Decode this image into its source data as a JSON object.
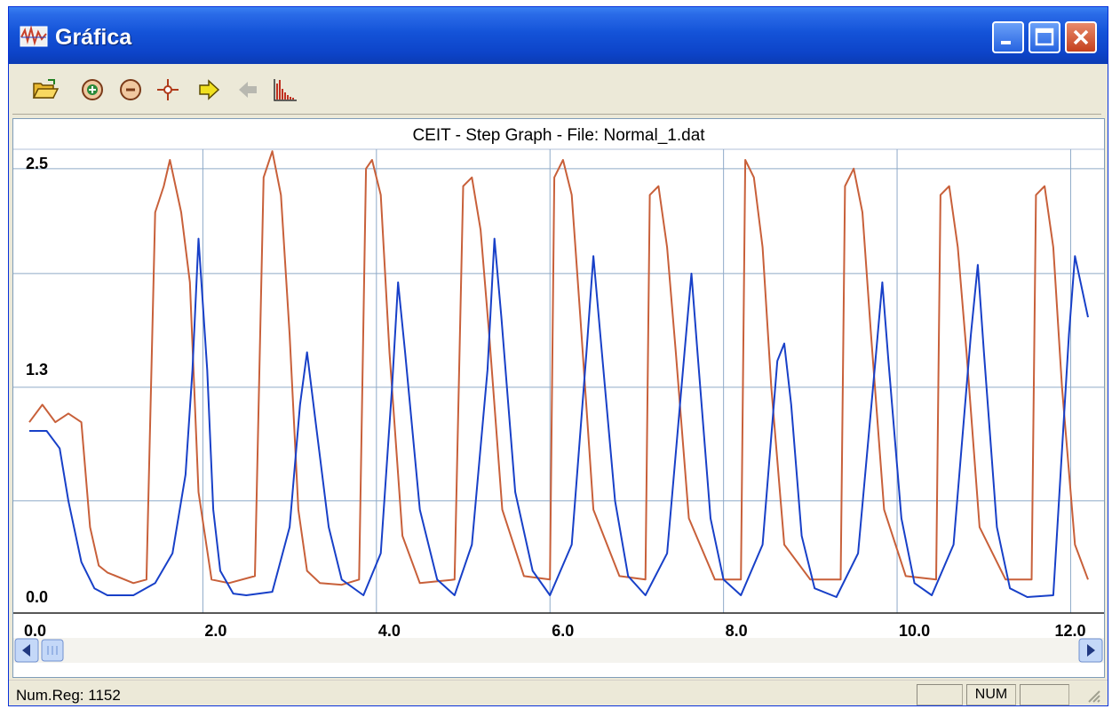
{
  "window": {
    "title": "Gráfica",
    "buttons": {
      "minimize": "minimize-icon",
      "maximize": "maximize-icon",
      "close": "close-icon"
    }
  },
  "toolbar": {
    "icons": [
      "open-folder-icon",
      "zoom-in-icon",
      "zoom-out-icon",
      "crosshair-icon",
      "forward-arrow-icon",
      "back-arrow-icon",
      "histogram-icon"
    ]
  },
  "status": {
    "text": "Num.Reg: 1152",
    "num": "NUM"
  },
  "colors": {
    "series_orange": "#c8603a",
    "series_blue": "#1840c8",
    "grid": "#8faac8"
  },
  "chart_data": {
    "type": "line",
    "title": "CEIT - Step Graph - File: Normal_1.dat",
    "x_ticks": [
      "0.0",
      "2.0",
      "4.0",
      "6.0",
      "8.0",
      "10.0",
      "12.0"
    ],
    "y_ticks": [
      "0.0",
      "1.3",
      "2.5"
    ],
    "xlim": [
      0.0,
      12.2
    ],
    "ylim": [
      0.0,
      2.5
    ],
    "grid": true,
    "series": [
      {
        "color": "#c8603a",
        "x": [
          0.0,
          0.15,
          0.3,
          0.45,
          0.6,
          0.7,
          0.8,
          0.9,
          1.2,
          1.35,
          1.45,
          1.55,
          1.62,
          1.75,
          1.85,
          1.95,
          2.1,
          2.3,
          2.6,
          2.7,
          2.8,
          2.9,
          3.0,
          3.1,
          3.2,
          3.35,
          3.6,
          3.8,
          3.88,
          3.95,
          4.05,
          4.15,
          4.3,
          4.5,
          4.9,
          5.0,
          5.1,
          5.2,
          5.3,
          5.45,
          5.7,
          6.0,
          6.05,
          6.15,
          6.25,
          6.35,
          6.5,
          6.8,
          7.1,
          7.15,
          7.25,
          7.35,
          7.45,
          7.6,
          7.9,
          8.2,
          8.25,
          8.35,
          8.45,
          8.55,
          8.7,
          9.0,
          9.35,
          9.4,
          9.5,
          9.6,
          9.7,
          9.85,
          10.1,
          10.45,
          10.5,
          10.6,
          10.7,
          10.8,
          10.95,
          11.25,
          11.55,
          11.6,
          11.7,
          11.8,
          11.9,
          12.05,
          12.2
        ],
        "y": [
          1.0,
          1.1,
          1.0,
          1.05,
          1.0,
          0.4,
          0.18,
          0.14,
          0.08,
          0.1,
          2.2,
          2.35,
          2.5,
          2.2,
          1.8,
          0.6,
          0.1,
          0.08,
          0.12,
          2.4,
          2.55,
          2.3,
          1.5,
          0.5,
          0.15,
          0.08,
          0.07,
          0.1,
          2.45,
          2.5,
          2.3,
          1.4,
          0.35,
          0.08,
          0.1,
          2.35,
          2.4,
          2.1,
          1.5,
          0.5,
          0.12,
          0.1,
          2.4,
          2.5,
          2.3,
          1.6,
          0.5,
          0.12,
          0.1,
          2.3,
          2.35,
          2.0,
          1.4,
          0.45,
          0.1,
          0.1,
          2.5,
          2.4,
          2.0,
          1.2,
          0.3,
          0.1,
          0.1,
          2.35,
          2.45,
          2.2,
          1.5,
          0.5,
          0.12,
          0.1,
          2.3,
          2.35,
          2.0,
          1.4,
          0.4,
          0.1,
          0.1,
          2.3,
          2.35,
          2.0,
          1.2,
          0.3,
          0.1
        ]
      },
      {
        "color": "#1840c8",
        "x": [
          0.0,
          0.2,
          0.35,
          0.45,
          0.6,
          0.75,
          0.9,
          1.2,
          1.45,
          1.65,
          1.8,
          1.88,
          1.95,
          2.05,
          2.12,
          2.2,
          2.35,
          2.5,
          2.8,
          3.0,
          3.12,
          3.2,
          3.3,
          3.45,
          3.6,
          3.85,
          4.05,
          4.18,
          4.25,
          4.33,
          4.5,
          4.7,
          4.9,
          5.1,
          5.28,
          5.36,
          5.44,
          5.6,
          5.8,
          6.0,
          6.25,
          6.42,
          6.5,
          6.58,
          6.75,
          6.9,
          7.1,
          7.35,
          7.55,
          7.63,
          7.7,
          7.85,
          8.0,
          8.2,
          8.45,
          8.62,
          8.7,
          8.78,
          8.9,
          9.05,
          9.3,
          9.55,
          9.75,
          9.83,
          9.9,
          10.05,
          10.2,
          10.4,
          10.65,
          10.85,
          10.93,
          11.0,
          11.15,
          11.3,
          11.5,
          11.8,
          11.98,
          12.05,
          12.2
        ],
        "y": [
          0.95,
          0.95,
          0.85,
          0.55,
          0.2,
          0.05,
          0.01,
          0.01,
          0.08,
          0.25,
          0.7,
          1.3,
          2.05,
          1.3,
          0.5,
          0.15,
          0.02,
          0.01,
          0.03,
          0.4,
          1.1,
          1.4,
          1.0,
          0.4,
          0.1,
          0.01,
          0.25,
          1.2,
          1.8,
          1.4,
          0.5,
          0.1,
          0.01,
          0.3,
          1.3,
          2.05,
          1.6,
          0.6,
          0.15,
          0.01,
          0.3,
          1.4,
          1.95,
          1.5,
          0.55,
          0.12,
          0.01,
          0.25,
          1.4,
          1.85,
          1.4,
          0.45,
          0.1,
          0.01,
          0.3,
          1.35,
          1.45,
          1.1,
          0.35,
          0.05,
          0.0,
          0.25,
          1.35,
          1.8,
          1.35,
          0.45,
          0.08,
          0.01,
          0.3,
          1.5,
          1.9,
          1.4,
          0.4,
          0.05,
          0.0,
          0.01,
          1.5,
          1.95,
          1.6
        ]
      }
    ]
  }
}
